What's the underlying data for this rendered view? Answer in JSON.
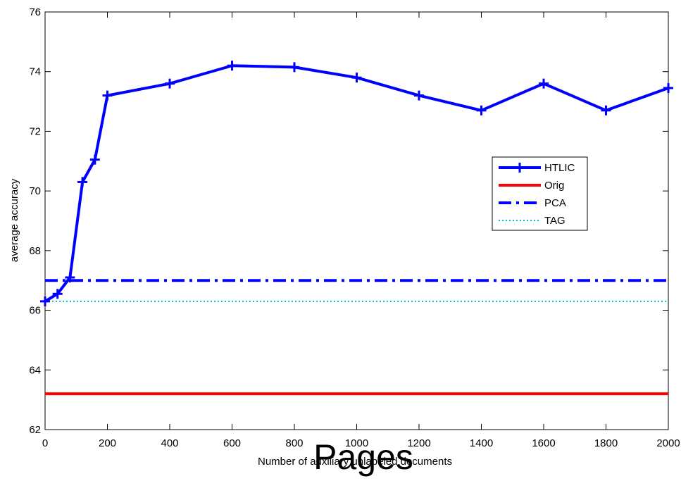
{
  "chart_data": {
    "type": "line",
    "title": "",
    "xlabel": "Number of auxiliary unlabeled documents",
    "ylabel": "average accuracy",
    "xlim": [
      0,
      2000
    ],
    "ylim": [
      62,
      76
    ],
    "xticks": [
      0,
      200,
      400,
      600,
      800,
      1000,
      1200,
      1400,
      1600,
      1800,
      2000
    ],
    "yticks": [
      62,
      64,
      66,
      68,
      70,
      72,
      74,
      76
    ],
    "xtick_labels": [
      "0",
      "200",
      "400",
      "600",
      "800",
      "1000",
      "1200",
      "1400",
      "1600",
      "1800",
      "2000"
    ],
    "ytick_labels": [
      "62",
      "64",
      "66",
      "68",
      "70",
      "72",
      "74",
      "76"
    ],
    "grid": false,
    "legend_position": "right",
    "series": [
      {
        "name": "HTLIC",
        "style": "solid-plus",
        "color": "#0000ff",
        "x": [
          0,
          40,
          80,
          120,
          160,
          200,
          400,
          600,
          800,
          1000,
          1200,
          1400,
          1600,
          1800,
          2000
        ],
        "y": [
          66.3,
          66.55,
          67.1,
          70.3,
          71.05,
          73.2,
          73.6,
          74.2,
          74.15,
          73.8,
          73.2,
          72.7,
          73.6,
          72.7,
          73.45
        ]
      },
      {
        "name": "Orig",
        "style": "solid",
        "color": "#ff0000",
        "x": [
          0,
          2000
        ],
        "y": [
          63.2,
          63.2
        ]
      },
      {
        "name": "PCA",
        "style": "dashdot",
        "color": "#0000ff",
        "x": [
          0,
          2000
        ],
        "y": [
          67.0,
          67.0
        ]
      },
      {
        "name": "TAG",
        "style": "dotted",
        "color": "#00bfbf",
        "x": [
          0,
          2000
        ],
        "y": [
          66.3,
          66.3
        ]
      }
    ]
  },
  "overlay": {
    "text": "Pages"
  }
}
